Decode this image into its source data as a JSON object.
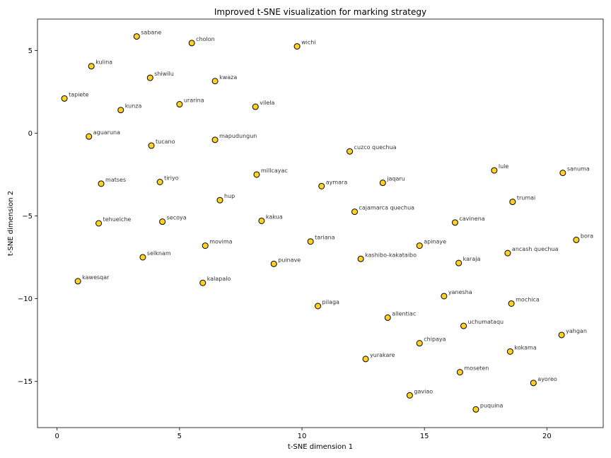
{
  "chart_data": {
    "type": "scatter",
    "title": "Improved t-SNE visualization for marking strategy",
    "xlabel": "t-SNE dimension 1",
    "ylabel": "t-SNE dimension 2",
    "xlim": [
      -0.8,
      22.3
    ],
    "ylim": [
      -17.8,
      6.9
    ],
    "xticks": [
      0,
      5,
      10,
      15,
      20
    ],
    "yticks": [
      -15,
      -10,
      -5,
      0,
      5
    ],
    "marker_fill": "#ffd21f",
    "marker_edge": "#000000",
    "points": [
      {
        "label": "sabane",
        "x": 3.25,
        "y": 5.85
      },
      {
        "label": "cholon",
        "x": 5.5,
        "y": 5.45
      },
      {
        "label": "wichi",
        "x": 9.8,
        "y": 5.25
      },
      {
        "label": "kulina",
        "x": 1.4,
        "y": 4.05
      },
      {
        "label": "shiwilu",
        "x": 3.8,
        "y": 3.35
      },
      {
        "label": "kwaza",
        "x": 6.45,
        "y": 3.15
      },
      {
        "label": "tapiete",
        "x": 0.3,
        "y": 2.1
      },
      {
        "label": "kunza",
        "x": 2.6,
        "y": 1.4
      },
      {
        "label": "urarina",
        "x": 5.0,
        "y": 1.75
      },
      {
        "label": "vilela",
        "x": 8.1,
        "y": 1.6
      },
      {
        "label": "aguaruna",
        "x": 1.3,
        "y": -0.2
      },
      {
        "label": "tucano",
        "x": 3.85,
        "y": -0.75
      },
      {
        "label": "mapudungun",
        "x": 6.45,
        "y": -0.4
      },
      {
        "label": "cuzco quechua",
        "x": 11.95,
        "y": -1.1
      },
      {
        "label": "lule",
        "x": 17.85,
        "y": -2.25
      },
      {
        "label": "sanuma",
        "x": 20.65,
        "y": -2.4
      },
      {
        "label": "matses",
        "x": 1.8,
        "y": -3.05
      },
      {
        "label": "tiriyo",
        "x": 4.2,
        "y": -2.95
      },
      {
        "label": "millcayac",
        "x": 8.15,
        "y": -2.5
      },
      {
        "label": "aymara",
        "x": 10.8,
        "y": -3.2
      },
      {
        "label": "jaqaru",
        "x": 13.3,
        "y": -3.0
      },
      {
        "label": "hup",
        "x": 6.65,
        "y": -4.05
      },
      {
        "label": "trumai",
        "x": 18.6,
        "y": -4.15
      },
      {
        "label": "cajamarca quechua",
        "x": 12.15,
        "y": -4.75
      },
      {
        "label": "tehuelche",
        "x": 1.7,
        "y": -5.45
      },
      {
        "label": "secoya",
        "x": 4.3,
        "y": -5.35
      },
      {
        "label": "kakua",
        "x": 8.35,
        "y": -5.3
      },
      {
        "label": "cavinena",
        "x": 16.25,
        "y": -5.4
      },
      {
        "label": "bora",
        "x": 21.2,
        "y": -6.45
      },
      {
        "label": "movima",
        "x": 6.05,
        "y": -6.8
      },
      {
        "label": "tariana",
        "x": 10.35,
        "y": -6.55
      },
      {
        "label": "apinaye",
        "x": 14.8,
        "y": -6.8
      },
      {
        "label": "ancash quechua",
        "x": 18.4,
        "y": -7.25
      },
      {
        "label": "selknam",
        "x": 3.5,
        "y": -7.5
      },
      {
        "label": "kashibo-kakataibo",
        "x": 12.4,
        "y": -7.6
      },
      {
        "label": "puinave",
        "x": 8.85,
        "y": -7.9
      },
      {
        "label": "karaja",
        "x": 16.4,
        "y": -7.85
      },
      {
        "label": "kawesqar",
        "x": 0.85,
        "y": -8.95
      },
      {
        "label": "kalapalo",
        "x": 5.95,
        "y": -9.05
      },
      {
        "label": "yanesha",
        "x": 15.8,
        "y": -9.85
      },
      {
        "label": "mochica",
        "x": 18.55,
        "y": -10.3
      },
      {
        "label": "pilaga",
        "x": 10.65,
        "y": -10.45
      },
      {
        "label": "allentiac",
        "x": 13.5,
        "y": -11.15
      },
      {
        "label": "uchumataqu",
        "x": 16.6,
        "y": -11.65
      },
      {
        "label": "yahgan",
        "x": 20.6,
        "y": -12.2
      },
      {
        "label": "chipaya",
        "x": 14.8,
        "y": -12.7
      },
      {
        "label": "kokama",
        "x": 18.5,
        "y": -13.2
      },
      {
        "label": "yurakare",
        "x": 12.6,
        "y": -13.65
      },
      {
        "label": "moseten",
        "x": 16.45,
        "y": -14.45
      },
      {
        "label": "ayoreo",
        "x": 19.45,
        "y": -15.1
      },
      {
        "label": "gaviao",
        "x": 14.4,
        "y": -15.85
      },
      {
        "label": "puquina",
        "x": 17.1,
        "y": -16.7
      }
    ]
  }
}
